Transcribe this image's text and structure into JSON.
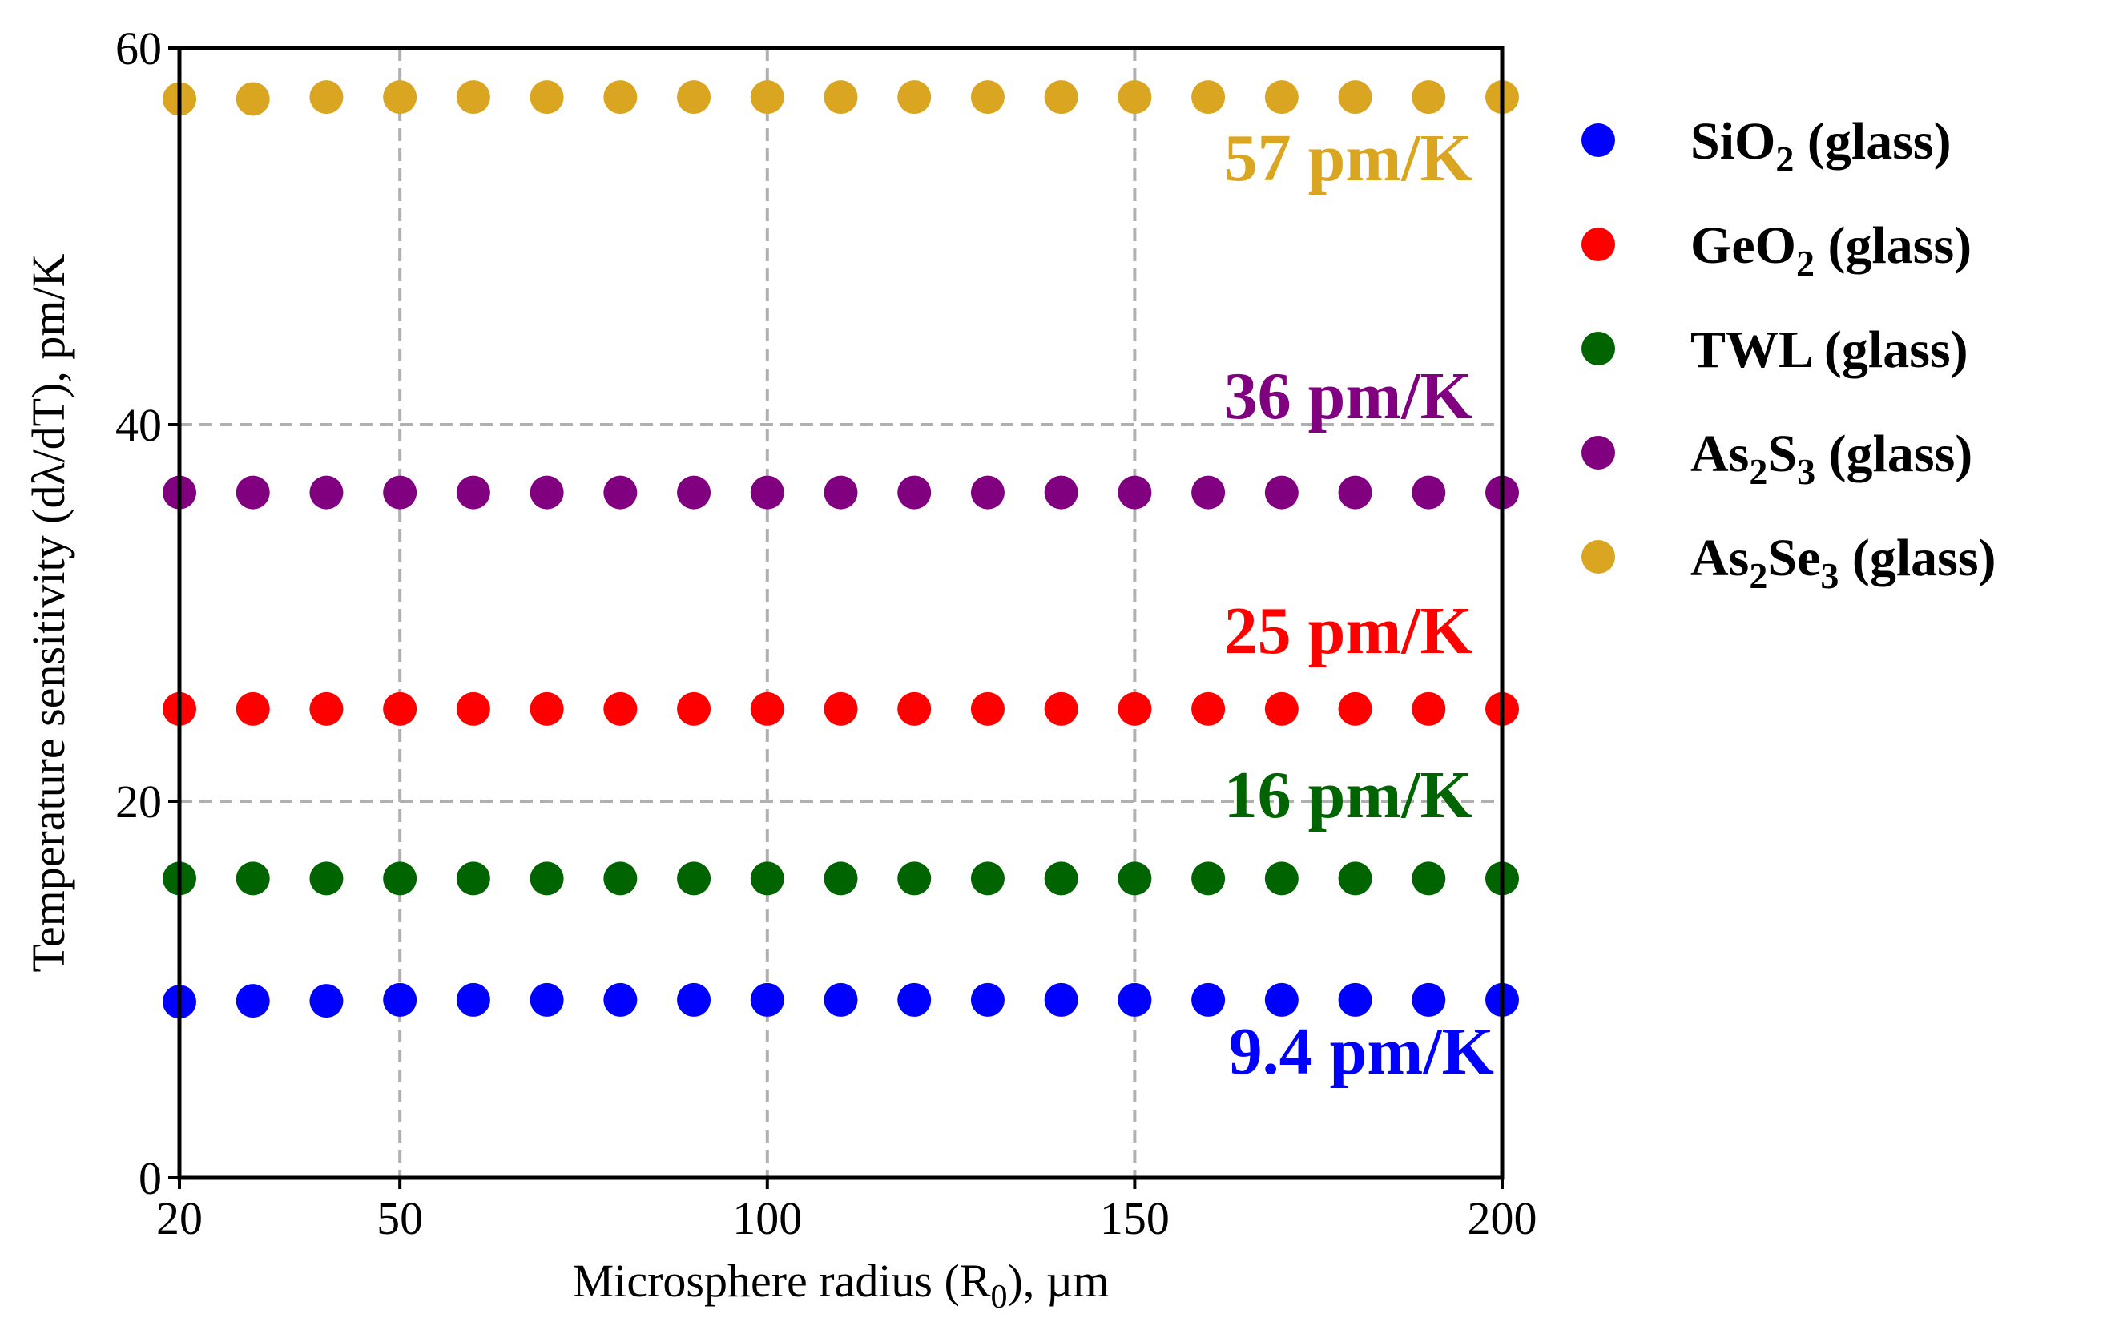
{
  "chart_data": {
    "type": "scatter",
    "title": "",
    "xlabel": {
      "main": "Microsphere radius (R",
      "sub": "0",
      "tail": "), µm"
    },
    "ylabel": "Temperature sensitivity (dλ/dT), pm/K",
    "xlim": [
      20,
      200
    ],
    "ylim": [
      0,
      60
    ],
    "x_ticks": [
      20,
      50,
      100,
      150,
      200
    ],
    "y_ticks": [
      0,
      20,
      40,
      60
    ],
    "grid": true,
    "legend_position": "outside-right",
    "x": [
      20,
      30,
      40,
      50,
      60,
      70,
      80,
      90,
      100,
      110,
      120,
      130,
      140,
      150,
      160,
      170,
      180,
      190,
      200
    ],
    "series": [
      {
        "key": "sio2",
        "name_parts": [
          [
            "SiO",
            "normal"
          ],
          [
            "2",
            "sub"
          ],
          [
            " (glass)",
            "normal"
          ]
        ],
        "color": "#0000ff",
        "values": [
          9.35,
          9.4,
          9.4,
          9.45,
          9.45,
          9.45,
          9.45,
          9.45,
          9.45,
          9.45,
          9.45,
          9.45,
          9.45,
          9.45,
          9.45,
          9.45,
          9.45,
          9.45,
          9.45
        ],
        "annotation": "9.4 pm/K"
      },
      {
        "key": "geo2",
        "name_parts": [
          [
            "GeO",
            "normal"
          ],
          [
            "2",
            "sub"
          ],
          [
            " (glass)",
            "normal"
          ]
        ],
        "color": "#ff0000",
        "values": [
          24.9,
          24.9,
          24.9,
          24.9,
          24.9,
          24.9,
          24.9,
          24.9,
          24.9,
          24.9,
          24.9,
          24.9,
          24.9,
          24.9,
          24.9,
          24.9,
          24.9,
          24.9,
          24.9
        ],
        "annotation": "25 pm/K"
      },
      {
        "key": "twl",
        "name_parts": [
          [
            "TWL (glass)",
            "normal"
          ]
        ],
        "color": "#006400",
        "values": [
          15.9,
          15.9,
          15.9,
          15.9,
          15.9,
          15.9,
          15.9,
          15.9,
          15.9,
          15.9,
          15.9,
          15.9,
          15.9,
          15.9,
          15.9,
          15.9,
          15.9,
          15.9,
          15.9
        ],
        "annotation": "16 pm/K"
      },
      {
        "key": "as2s3",
        "name_parts": [
          [
            "As",
            "normal"
          ],
          [
            "2",
            "sub"
          ],
          [
            "S",
            "normal"
          ],
          [
            "3",
            "sub"
          ],
          [
            " (glass)",
            "normal"
          ]
        ],
        "color": "#800080",
        "values": [
          36.4,
          36.4,
          36.4,
          36.4,
          36.4,
          36.4,
          36.4,
          36.4,
          36.4,
          36.4,
          36.4,
          36.4,
          36.4,
          36.4,
          36.4,
          36.4,
          36.4,
          36.4,
          36.4
        ],
        "annotation": "36 pm/K"
      },
      {
        "key": "as2se3",
        "name_parts": [
          [
            "As",
            "normal"
          ],
          [
            "2",
            "sub"
          ],
          [
            "Se",
            "normal"
          ],
          [
            "3",
            "sub"
          ],
          [
            " (glass)",
            "normal"
          ]
        ],
        "color": "#daa520",
        "values": [
          57.3,
          57.3,
          57.4,
          57.4,
          57.4,
          57.4,
          57.4,
          57.4,
          57.4,
          57.4,
          57.4,
          57.4,
          57.4,
          57.4,
          57.4,
          57.4,
          57.4,
          57.4,
          57.4
        ],
        "annotation": "57 pm/K"
      }
    ]
  }
}
